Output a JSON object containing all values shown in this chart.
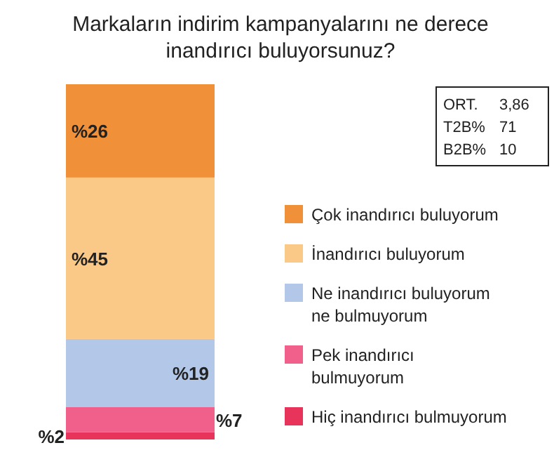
{
  "chart_data": {
    "type": "bar",
    "stacked": true,
    "title": "Markaların indirim kampanyalarını ne derece inandırıcı buluyorsunuz?",
    "categories": [
      null
    ],
    "series": [
      {
        "name": "Hiç inandırıcı bulmuyorum",
        "color": "#e8335a",
        "values": [
          2
        ],
        "value_labels": [
          "%2"
        ]
      },
      {
        "name": "Pek inandırıcı bulmuyorum",
        "color": "#f0608a",
        "values": [
          7
        ],
        "value_labels": [
          "%7"
        ]
      },
      {
        "name": "Ne inandırıcı buluyorum ne bulmuyorum",
        "color": "#b3c8e8",
        "values": [
          19
        ],
        "value_labels": [
          "%19"
        ]
      },
      {
        "name": "İnandırıcı buluyorum",
        "color": "#fbc987",
        "values": [
          45
        ],
        "value_labels": [
          "%45"
        ]
      },
      {
        "name": "Çok inandırıcı buluyorum",
        "color": "#f0913a",
        "values": [
          26
        ],
        "value_labels": [
          "%26"
        ]
      }
    ],
    "legend": "right",
    "tick_labels": false,
    "annotations": [
      "ORT. 3,86",
      "T2B% 71",
      "B2B% 10"
    ]
  }
}
